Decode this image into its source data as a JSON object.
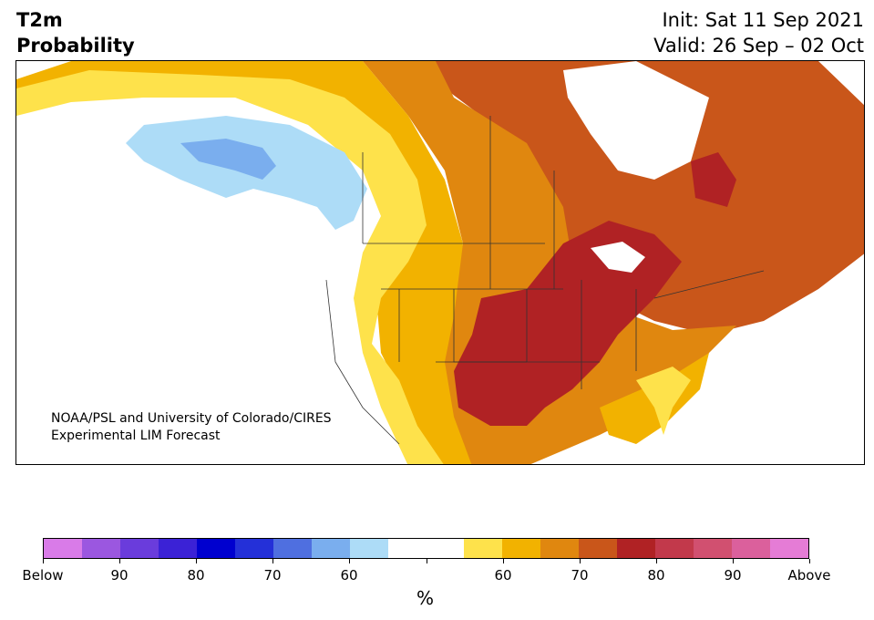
{
  "header": {
    "title_line1": "T2m",
    "title_line2": "Probability",
    "init": "Init: Sat 11 Sep 2021",
    "valid": "Valid: 26 Sep – 02 Oct"
  },
  "map": {
    "credit_line1": "NOAA/PSL and University of Colorado/CIRES",
    "credit_line2": "Experimental LIM Forecast"
  },
  "colorbar": {
    "colors": [
      "#d97be8",
      "#9b57e0",
      "#6a3cdc",
      "#3b22d6",
      "#0000cf",
      "#2430d8",
      "#4f6fe0",
      "#7aaeee",
      "#addcf7",
      "#ffffff",
      "#ffffff",
      "#fee24b",
      "#f2b200",
      "#e0870f",
      "#c9561a",
      "#b02224",
      "#c2394b",
      "#d15070",
      "#db609c",
      "#e57cd6"
    ],
    "tick_labels": [
      "Below",
      "90",
      "80",
      "70",
      "60",
      "",
      "60",
      "70",
      "80",
      "90",
      "Above"
    ],
    "unit": "%"
  },
  "legend_colors": {
    "below_light_blue": "#addcf7",
    "below_mid_blue": "#7aaeee",
    "above_yellow": "#fee24b",
    "above_gold": "#f2b200",
    "above_orange": "#e0870f",
    "above_dark_orange": "#c9561a",
    "above_red": "#b02224"
  }
}
